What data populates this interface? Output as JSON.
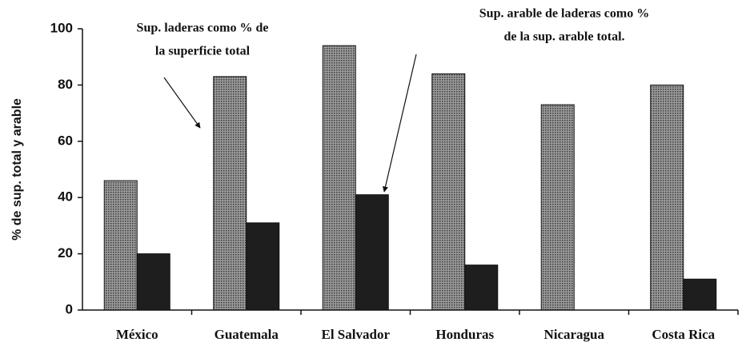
{
  "chart_data": {
    "type": "bar",
    "y_label": "% de sup. total y arable",
    "categories": [
      "México",
      "Guatemala",
      "El Salvador",
      "Honduras",
      "Nicaragua",
      "Costa Rica"
    ],
    "series": [
      {
        "color": "#7a7a7a",
        "values": [
          46,
          83,
          94,
          84,
          73,
          80
        ]
      },
      {
        "color": "#1e1e1e",
        "values": [
          20,
          31,
          41,
          16,
          null,
          11
        ]
      }
    ],
    "ylim": [
      0,
      100
    ],
    "yticks": [
      0,
      20,
      40,
      60,
      80,
      100
    ],
    "annotations": [
      {
        "lines": [
          "Sup. laderas como % de",
          "la superficie total"
        ]
      },
      {
        "lines": [
          "Sup. arable de laderas como %",
          "de la sup. arable total."
        ]
      }
    ]
  }
}
